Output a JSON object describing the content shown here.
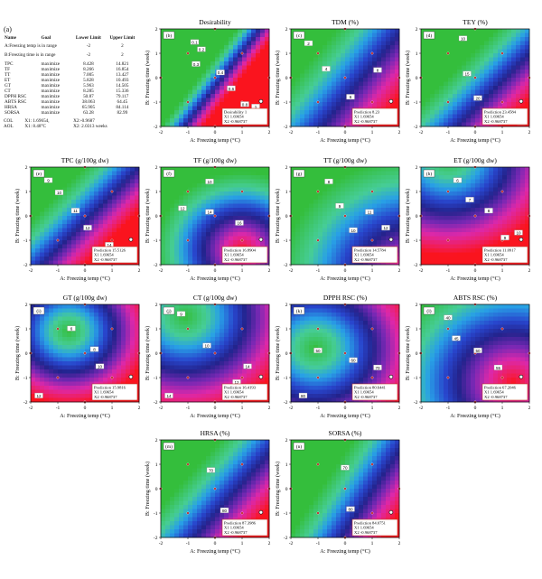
{
  "constraints_panel": {
    "letter": "(a)",
    "headers": {
      "name": "Name",
      "goal": "Goal",
      "lower": "Lower Limit",
      "upper": "Upper Limit"
    },
    "range_rows": [
      {
        "name": "A:Freezing temp is in range",
        "lower": "-2",
        "upper": "2"
      },
      {
        "name": "B:Freezing time is in range",
        "lower": "-2",
        "upper": "2"
      }
    ],
    "response_rows": [
      {
        "name": "TPC",
        "goal": "maximize",
        "lower": "8.428",
        "upper": "14.821"
      },
      {
        "name": "TF",
        "goal": "maximize",
        "lower": "8.266",
        "upper": "16.854"
      },
      {
        "name": "TT",
        "goal": "maximize",
        "lower": "7.005",
        "upper": "13.427"
      },
      {
        "name": "ET",
        "goal": "maximize",
        "lower": "5.828",
        "upper": "10.493"
      },
      {
        "name": "GT",
        "goal": "maximize",
        "lower": "5.963",
        "upper": "14.505"
      },
      {
        "name": "CT",
        "goal": "maximize",
        "lower": "8.285",
        "upper": "15.336"
      },
      {
        "name": "DPPH RSC",
        "goal": "maximize",
        "lower": "50.87",
        "upper": "79.117"
      },
      {
        "name": "ABTS RSC",
        "goal": "maximize",
        "lower": "38.063",
        "upper": "64.45"
      },
      {
        "name": "HRSA",
        "goal": "maximize",
        "lower": "65.905",
        "upper": "84.114"
      },
      {
        "name": "SORSA",
        "goal": "maximize",
        "lower": "63.28",
        "upper": "82.99"
      }
    ],
    "solution": [
      {
        "name": "COL",
        "a": "X1: 1.69654,",
        "b": "X2:-0.9687"
      },
      {
        "name": "AOL",
        "a": "X1: 8.48°C",
        "b": "X2: 2.0313 weeks"
      }
    ]
  },
  "axis_labels": {
    "x": "A: Freezing temp (°C)",
    "y": "B: Freezing time (week)"
  },
  "chart_data": [
    {
      "type": "heatmap",
      "letter": "(b)",
      "title": "Desirability",
      "xlim": [
        -2,
        2
      ],
      "ylim": [
        -2,
        2
      ],
      "x_ticks": [
        "-2",
        "-1",
        "0",
        "1",
        "2"
      ],
      "y_ticks": [
        "-2",
        "-1",
        "0",
        "1",
        "2"
      ],
      "optimum": {
        "x": 1.69654,
        "y": -0.968737
      },
      "colormap": "green-blue-red",
      "surface": {
        "kind": "plane",
        "dir": [
          1,
          -0.7
        ],
        "xmin": -0.6,
        "xmax": 0.97
      },
      "contour_labels": [
        {
          "text": "0.1",
          "x": -0.75,
          "y": 1.45
        },
        {
          "text": "0.2",
          "x": -0.5,
          "y": 1.15
        },
        {
          "text": "0.3",
          "x": -0.7,
          "y": 0.55
        },
        {
          "text": "0.4",
          "x": 0.2,
          "y": 0.2
        },
        {
          "text": "0.6",
          "x": 0.6,
          "y": -0.45
        },
        {
          "text": "0.8",
          "x": 1.1,
          "y": -1.1
        },
        {
          "text": "1",
          "x": 1.5,
          "y": -1.2
        }
      ],
      "prediction": {
        "label": "Desirability 1",
        "x1": "X1 1.69654",
        "x2": "X2 -0.968737"
      }
    },
    {
      "type": "heatmap",
      "letter": "(c)",
      "title": "TDM (%)",
      "xlim": [
        -2,
        2
      ],
      "ylim": [
        -2,
        2
      ],
      "x_ticks": [
        "-2",
        "-1",
        "0",
        "1",
        "2"
      ],
      "y_ticks": [
        "-2",
        "-1",
        "0",
        "1",
        "2"
      ],
      "optimum": {
        "x": 1.69654,
        "y": -0.968737
      },
      "colormap": "green-blue-red",
      "surface": {
        "kind": "plane",
        "dir": [
          1,
          -0.75
        ],
        "xmin": -1.8,
        "xmax": 2.6
      },
      "contour_labels": [
        {
          "text": "2",
          "x": -1.35,
          "y": 1.4
        },
        {
          "text": "4",
          "x": -0.7,
          "y": 0.35
        },
        {
          "text": "6",
          "x": 0.2,
          "y": -0.8
        },
        {
          "text": "8",
          "x": 1.2,
          "y": 0.3
        }
      ],
      "prediction": {
        "label": "Prediction 8.23",
        "x1": "X1 1.69654",
        "x2": "X2 -0.968737"
      }
    },
    {
      "type": "heatmap",
      "letter": "(d)",
      "title": "TEY (%)",
      "xlim": [
        -2,
        2
      ],
      "ylim": [
        -2,
        2
      ],
      "x_ticks": [
        "-2",
        "-1",
        "0",
        "1",
        "2"
      ],
      "y_ticks": [
        "-2",
        "-1",
        "0",
        "1",
        "2"
      ],
      "optimum": {
        "x": 1.69654,
        "y": -0.968737
      },
      "colormap": "green-blue-red",
      "surface": {
        "kind": "plane",
        "dir": [
          1,
          -0.9
        ],
        "xmin": -1.0,
        "xmax": 2.8
      },
      "contour_labels": [
        {
          "text": "10",
          "x": -0.45,
          "y": 1.6
        },
        {
          "text": "15",
          "x": -0.3,
          "y": 0.15
        },
        {
          "text": "20",
          "x": 0.1,
          "y": -0.85
        },
        {
          "text": "25",
          "x": 1.7,
          "y": -1.85
        }
      ],
      "prediction": {
        "label": "Prediction 23.4584",
        "x1": "X1 1.69654",
        "x2": "X2 -0.968737"
      }
    },
    {
      "type": "heatmap",
      "letter": "(e)",
      "title": "TPC (g/100g dw)",
      "xlim": [
        -2,
        2
      ],
      "ylim": [
        -2,
        2
      ],
      "x_ticks": [
        "-2",
        "-1",
        "0",
        "1",
        "2"
      ],
      "y_ticks": [
        "-2",
        "-1",
        "0",
        "1",
        "2"
      ],
      "optimum": {
        "x": 1.69654,
        "y": -0.968737
      },
      "colormap": "green-blue-red",
      "surface": {
        "kind": "plane",
        "dir": [
          1,
          -0.9
        ],
        "xmin": -1.8,
        "xmax": 1.8
      },
      "contour_labels": [
        {
          "text": "9",
          "x": -1.35,
          "y": 1.45
        },
        {
          "text": "10",
          "x": -0.95,
          "y": 0.95
        },
        {
          "text": "11",
          "x": -0.35,
          "y": 0.2
        },
        {
          "text": "12",
          "x": 0.1,
          "y": -0.5
        },
        {
          "text": "14",
          "x": 0.9,
          "y": -1.2
        }
      ],
      "prediction": {
        "label": "Prediction 15.5126",
        "x1": "X1 1.69654",
        "x2": "X2 -0.968737"
      }
    },
    {
      "type": "heatmap",
      "letter": "(f)",
      "title": "TF (g/100g dw)",
      "xlim": [
        -2,
        2
      ],
      "ylim": [
        -2,
        2
      ],
      "x_ticks": [
        "-2",
        "-1",
        "0",
        "1",
        "2"
      ],
      "y_ticks": [
        "-2",
        "-1",
        "0",
        "1",
        "2"
      ],
      "optimum": {
        "x": 1.69654,
        "y": -0.968737
      },
      "colormap": "green-blue-red",
      "surface": {
        "kind": "radial",
        "cx": 1.0,
        "cy": -1.4,
        "rmax": 3.2,
        "inverse": true
      },
      "contour_labels": [
        {
          "text": "10",
          "x": -0.2,
          "y": 1.4
        },
        {
          "text": "12",
          "x": -1.2,
          "y": 0.3
        },
        {
          "text": "14",
          "x": -0.2,
          "y": 0.15
        },
        {
          "text": "16",
          "x": 0.9,
          "y": -0.3
        }
      ],
      "prediction": {
        "label": "Prediction 16.8904",
        "x1": "X1 1.69654",
        "x2": "X2 -0.968737"
      }
    },
    {
      "type": "heatmap",
      "letter": "(g)",
      "title": "TT (g/100g dw)",
      "xlim": [
        -2,
        2
      ],
      "ylim": [
        -2,
        2
      ],
      "x_ticks": [
        "-2",
        "-1",
        "0",
        "1",
        "2"
      ],
      "y_ticks": [
        "-2",
        "-1",
        "0",
        "1",
        "2"
      ],
      "optimum": {
        "x": 1.69654,
        "y": -0.968737
      },
      "colormap": "green-blue-red",
      "surface": {
        "kind": "radial",
        "cx": 2.6,
        "cy": -2.6,
        "rmax": 5.0,
        "inverse": true
      },
      "contour_labels": [
        {
          "text": "8",
          "x": -0.6,
          "y": 1.4
        },
        {
          "text": "9",
          "x": -0.2,
          "y": 0.4
        },
        {
          "text": "10",
          "x": 0.3,
          "y": -0.6
        },
        {
          "text": "11",
          "x": 0.9,
          "y": 0.15
        },
        {
          "text": "12",
          "x": 1.5,
          "y": -0.5
        }
      ],
      "prediction": {
        "label": "Prediction 14.5784",
        "x1": "X1 1.69654",
        "x2": "X2 -0.968737"
      }
    },
    {
      "type": "heatmap",
      "letter": "(h)",
      "title": "ET (g/100g dw)",
      "xlim": [
        -2,
        2
      ],
      "ylim": [
        -2,
        2
      ],
      "x_ticks": [
        "-2",
        "-1",
        "0",
        "1",
        "2"
      ],
      "y_ticks": [
        "-2",
        "-1",
        "0",
        "1",
        "2"
      ],
      "optimum": {
        "x": 1.69654,
        "y": -0.968737
      },
      "colormap": "green-blue-red",
      "surface": {
        "kind": "radial",
        "cx": -1.0,
        "cy": 2.4,
        "rmax": 4.0,
        "inverse": false
      },
      "contour_labels": [
        {
          "text": "6",
          "x": -0.65,
          "y": 1.45
        },
        {
          "text": "7",
          "x": -0.2,
          "y": 0.65
        },
        {
          "text": "8",
          "x": 0.5,
          "y": 0.2
        },
        {
          "text": "9",
          "x": 1.1,
          "y": -0.9
        },
        {
          "text": "10",
          "x": 1.6,
          "y": -0.7
        }
      ],
      "prediction": {
        "label": "Prediction 11.0917",
        "x1": "X1 1.69654",
        "x2": "X2 -0.968737"
      }
    },
    {
      "type": "heatmap",
      "letter": "(i)",
      "title": "GT (g/100g dw)",
      "xlim": [
        -2,
        2
      ],
      "ylim": [
        -2,
        2
      ],
      "x_ticks": [
        "-2",
        "-1",
        "0",
        "1",
        "2"
      ],
      "y_ticks": [
        "-2",
        "-1",
        "0",
        "1",
        "2"
      ],
      "optimum": {
        "x": 1.69654,
        "y": -0.968737
      },
      "colormap": "green-blue-red",
      "surface": {
        "kind": "radial",
        "cx": -0.6,
        "cy": 0.9,
        "rmax": 3.0,
        "inverse": false
      },
      "contour_labels": [
        {
          "text": "6",
          "x": -0.5,
          "y": 1.0
        },
        {
          "text": "8",
          "x": 0.35,
          "y": 0.15
        },
        {
          "text": "10",
          "x": 0.55,
          "y": -0.55
        },
        {
          "text": "12",
          "x": 1.3,
          "y": -1.4
        },
        {
          "text": "12",
          "x": -1.7,
          "y": -1.75
        }
      ],
      "prediction": {
        "label": "Prediction 15.9816",
        "x1": "X1 1.69654",
        "x2": "X2 -0.968737"
      }
    },
    {
      "type": "heatmap",
      "letter": "(j)",
      "title": "CT (g/100g dw)",
      "xlim": [
        -2,
        2
      ],
      "ylim": [
        -2,
        2
      ],
      "x_ticks": [
        "-2",
        "-1",
        "0",
        "1",
        "2"
      ],
      "y_ticks": [
        "-2",
        "-1",
        "0",
        "1",
        "2"
      ],
      "optimum": {
        "x": 1.69654,
        "y": -0.968737
      },
      "colormap": "green-blue-red",
      "surface": {
        "kind": "radial",
        "cx": -1.1,
        "cy": 1.5,
        "rmax": 4.0,
        "inverse": false
      },
      "contour_labels": [
        {
          "text": "9",
          "x": -1.25,
          "y": 1.6
        },
        {
          "text": "10",
          "x": -0.3,
          "y": 0.3
        },
        {
          "text": "12",
          "x": 0.8,
          "y": -1.2
        },
        {
          "text": "14",
          "x": 1.2,
          "y": -0.55
        },
        {
          "text": "14",
          "x": -1.7,
          "y": -1.75
        }
      ],
      "prediction": {
        "label": "Prediction 16.4193",
        "x1": "X1 1.69654",
        "x2": "X2 -0.968737"
      }
    },
    {
      "type": "heatmap",
      "letter": "(k)",
      "title": "DPPH RSC (%)",
      "xlim": [
        -2,
        2
      ],
      "ylim": [
        -2,
        2
      ],
      "x_ticks": [
        "-2",
        "-1",
        "0",
        "1",
        "2"
      ],
      "y_ticks": [
        "-2",
        "-1",
        "0",
        "1",
        "2"
      ],
      "optimum": {
        "x": 1.69654,
        "y": -0.968737
      },
      "colormap": "green-blue-red",
      "surface": {
        "kind": "radial",
        "cx": -1.1,
        "cy": 0.2,
        "rmax": 3.8,
        "inverse": false
      },
      "contour_labels": [
        {
          "text": "50",
          "x": -1.0,
          "y": 0.1
        },
        {
          "text": "60",
          "x": 0.3,
          "y": -0.3
        },
        {
          "text": "70",
          "x": 1.2,
          "y": -0.6
        },
        {
          "text": "80",
          "x": -1.55,
          "y": -1.75
        }
      ],
      "prediction": {
        "label": "Prediction 80.6441",
        "x1": "X1 1.69654",
        "x2": "X2 -0.968737"
      }
    },
    {
      "type": "heatmap",
      "letter": "(l)",
      "title": "ABTS RSC (%)",
      "xlim": [
        -2,
        2
      ],
      "ylim": [
        -2,
        2
      ],
      "x_ticks": [
        "-2",
        "-1",
        "0",
        "1",
        "2"
      ],
      "y_ticks": [
        "-2",
        "-1",
        "0",
        "1",
        "2"
      ],
      "optimum": {
        "x": 1.69654,
        "y": -0.968737
      },
      "colormap": "green-blue-red",
      "surface": {
        "kind": "radial",
        "cx": 1.4,
        "cy": -1.2,
        "rmax": 4.6,
        "inverse": true
      },
      "contour_labels": [
        {
          "text": "40",
          "x": -1.0,
          "y": 1.45
        },
        {
          "text": "45",
          "x": -0.7,
          "y": 0.6
        },
        {
          "text": "50",
          "x": 0.1,
          "y": 0.1
        },
        {
          "text": "55",
          "x": 0.85,
          "y": -0.6
        }
      ],
      "prediction": {
        "label": "Prediction 67.2046",
        "x1": "X1 1.69654",
        "x2": "X2 -0.968737"
      }
    },
    {
      "type": "heatmap",
      "letter": "(m)",
      "title": "HRSA (%)",
      "xlim": [
        -2,
        2
      ],
      "ylim": [
        -2,
        2
      ],
      "x_ticks": [
        "-2",
        "-1",
        "0",
        "1",
        "2"
      ],
      "y_ticks": [
        "-2",
        "-1",
        "0",
        "1",
        "2"
      ],
      "optimum": {
        "x": 1.69654,
        "y": -0.968737
      },
      "colormap": "green-blue-red",
      "surface": {
        "kind": "plane",
        "dir": [
          1,
          -0.8
        ],
        "xmin": -1.4,
        "xmax": 2.6
      },
      "contour_labels": [
        {
          "text": "70",
          "x": -0.15,
          "y": 0.75
        },
        {
          "text": "80",
          "x": 0.35,
          "y": -0.9
        }
      ],
      "prediction": {
        "label": "Prediction 87.3986",
        "x1": "X1 1.69654",
        "x2": "X2 -0.968737"
      }
    },
    {
      "type": "heatmap",
      "letter": "(n)",
      "title": "SORSA (%)",
      "xlim": [
        -2,
        2
      ],
      "ylim": [
        -2,
        2
      ],
      "x_ticks": [
        "-2",
        "-1",
        "0",
        "1",
        "2"
      ],
      "y_ticks": [
        "-2",
        "-1",
        "0",
        "1",
        "2"
      ],
      "optimum": {
        "x": 1.69654,
        "y": -0.968737
      },
      "colormap": "green-blue-red",
      "surface": {
        "kind": "plane",
        "dir": [
          1,
          -0.6
        ],
        "xmin": -0.9,
        "xmax": 2.6
      },
      "contour_labels": [
        {
          "text": "70",
          "x": 0.0,
          "y": 0.85
        },
        {
          "text": "80",
          "x": 0.2,
          "y": -0.85
        }
      ],
      "prediction": {
        "label": "Prediction 84.0751",
        "x1": "X1 1.69654",
        "x2": "X2 -0.968737"
      }
    }
  ]
}
